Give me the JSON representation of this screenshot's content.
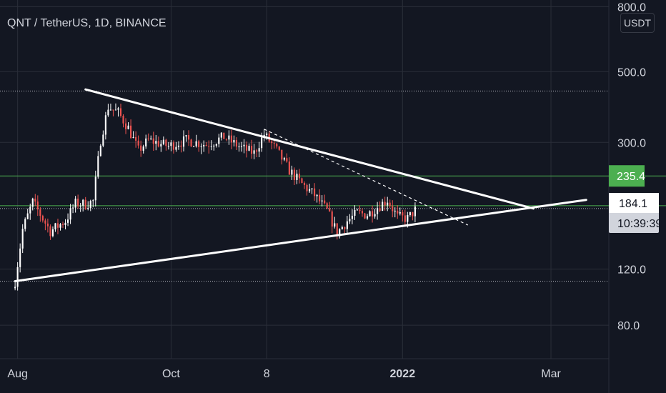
{
  "header": {
    "title": "QNT / TetherUS, 1D, BINANCE",
    "currency_button": "USDT"
  },
  "colors": {
    "background": "#131722",
    "up": "#ffffff",
    "down": "#ef5350",
    "level": "#4caf50",
    "trendline": "#ffffff",
    "grid": "#2a2e39",
    "text": "#d1d4dc"
  },
  "chart_data": {
    "type": "candlestick",
    "symbol": "QNT / TetherUS",
    "timeframe": "1D",
    "exchange": "BINANCE",
    "y_scale": "log",
    "ylim": [
      49,
      840
    ],
    "xlim": [
      "2021-07-25",
      "2022-03-24"
    ],
    "y_ticks": [
      "800.0",
      "500.0",
      "300.0",
      "120.0",
      "80.0"
    ],
    "y_tick_values": [
      800,
      500,
      300,
      120,
      80
    ],
    "x_ticks": [
      {
        "label": "Aug",
        "date": "2021-08-01"
      },
      {
        "label": "Oct",
        "date": "2021-10-01"
      },
      {
        "label": "8",
        "date": "2021-11-08"
      },
      {
        "label": "2022",
        "date": "2022-01-01"
      },
      {
        "label": "Mar",
        "date": "2022-03-01"
      }
    ],
    "horizontal_levels": [
      {
        "value": 235.4,
        "label": "235.4",
        "color": "#4caf50"
      },
      {
        "value": 189.8,
        "label": "189.8",
        "color": "#4caf50"
      }
    ],
    "dotted_levels": [
      435,
      186,
      110
    ],
    "last_price": {
      "value": 184.1,
      "label": "184.1",
      "countdown": "10:39:39"
    },
    "trendlines": [
      {
        "from": {
          "date": "2021-08-28",
          "price": 440
        },
        "to": {
          "date": "2022-02-22",
          "price": 186
        },
        "style": "solid"
      },
      {
        "from": {
          "date": "2021-07-31",
          "price": 110
        },
        "to": {
          "date": "2022-03-15",
          "price": 198
        },
        "style": "solid"
      },
      {
        "from": {
          "date": "2021-11-07",
          "price": 330
        },
        "to": {
          "date": "2022-01-27",
          "price": 165
        },
        "style": "dashed"
      }
    ],
    "anchors": [
      {
        "date": "2021-07-31",
        "price": 110
      },
      {
        "date": "2021-08-03",
        "price": 160
      },
      {
        "date": "2021-08-07",
        "price": 195
      },
      {
        "date": "2021-08-14",
        "price": 158
      },
      {
        "date": "2021-08-20",
        "price": 170
      },
      {
        "date": "2021-08-24",
        "price": 193
      },
      {
        "date": "2021-08-28",
        "price": 192
      },
      {
        "date": "2021-08-31",
        "price": 196
      },
      {
        "date": "2021-09-03",
        "price": 305
      },
      {
        "date": "2021-09-06",
        "price": 388
      },
      {
        "date": "2021-09-10",
        "price": 372
      },
      {
        "date": "2021-09-14",
        "price": 333
      },
      {
        "date": "2021-09-18",
        "price": 283
      },
      {
        "date": "2021-09-22",
        "price": 305
      },
      {
        "date": "2021-09-30",
        "price": 292
      },
      {
        "date": "2021-10-07",
        "price": 305
      },
      {
        "date": "2021-10-15",
        "price": 295
      },
      {
        "date": "2021-10-22",
        "price": 312
      },
      {
        "date": "2021-10-29",
        "price": 288
      },
      {
        "date": "2021-11-03",
        "price": 278
      },
      {
        "date": "2021-11-07",
        "price": 318
      },
      {
        "date": "2021-11-12",
        "price": 283
      },
      {
        "date": "2021-11-17",
        "price": 245
      },
      {
        "date": "2021-11-22",
        "price": 222
      },
      {
        "date": "2021-11-27",
        "price": 205
      },
      {
        "date": "2021-12-02",
        "price": 183
      },
      {
        "date": "2021-12-06",
        "price": 156
      },
      {
        "date": "2021-12-10",
        "price": 170
      },
      {
        "date": "2021-12-14",
        "price": 180
      },
      {
        "date": "2021-12-18",
        "price": 178
      },
      {
        "date": "2021-12-22",
        "price": 188
      },
      {
        "date": "2021-12-26",
        "price": 198
      },
      {
        "date": "2021-12-30",
        "price": 175
      },
      {
        "date": "2022-01-03",
        "price": 173
      },
      {
        "date": "2022-01-06",
        "price": 184
      }
    ]
  }
}
